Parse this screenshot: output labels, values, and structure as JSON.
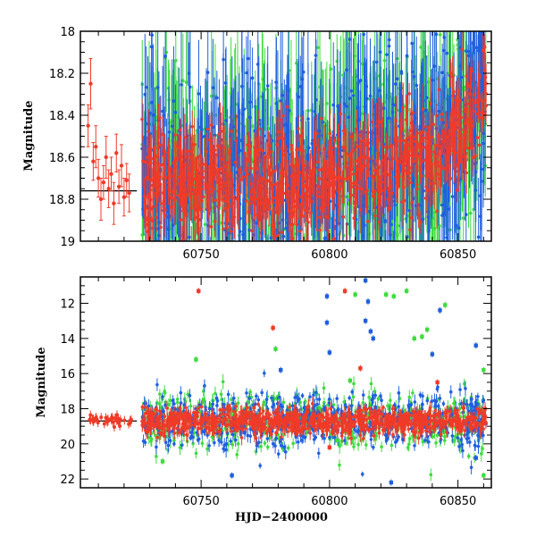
{
  "chart_data": [
    {
      "type": "scatter",
      "title": "",
      "xlabel": "",
      "ylabel": "Magnitude",
      "xlim": [
        60703,
        60863
      ],
      "ylim": [
        19,
        18
      ],
      "y_inverted": true,
      "xticks": [
        60750,
        60800,
        60850
      ],
      "xtick_labels": [
        "60750",
        "60800",
        "60850"
      ],
      "yticks": [
        18,
        18.2,
        18.4,
        18.6,
        18.8,
        19
      ],
      "ytick_labels": [
        "18",
        "18.2",
        "18.4",
        "18.6",
        "18.8",
        "19"
      ],
      "series_colors": {
        "green": "#3ddc3d",
        "blue": "#1f5fe0",
        "red": "#f03a28"
      },
      "reference_line": {
        "y": 18.76,
        "x_end": 60725,
        "color": "#000000"
      },
      "notes_visible": "dense scatter with error bars; blue and green extend above 18 late",
      "series": [
        {
          "color_key": "red",
          "x": [
            60706,
            60707,
            60708,
            60709,
            60710,
            60711,
            60712,
            60713,
            60714,
            60715,
            60716,
            60717,
            60718,
            60719,
            60720,
            60721,
            60722
          ],
          "y": [
            18.45,
            18.25,
            18.62,
            18.55,
            18.7,
            18.8,
            18.72,
            18.6,
            18.75,
            18.68,
            18.82,
            18.58,
            18.74,
            18.64,
            18.79,
            18.71,
            18.77
          ],
          "err": [
            0.1,
            0.12,
            0.09,
            0.1,
            0.09,
            0.1,
            0.08,
            0.1,
            0.09,
            0.08,
            0.1,
            0.09,
            0.08,
            0.1,
            0.09,
            0.08,
            0.09
          ]
        }
      ]
    },
    {
      "type": "scatter",
      "title": "",
      "xlabel": "HJD−2400000",
      "ylabel": "Magnitude",
      "xlim": [
        60703,
        60863
      ],
      "ylim": [
        22.5,
        10.5
      ],
      "y_inverted": true,
      "xticks": [
        60750,
        60800,
        60850
      ],
      "xtick_labels": [
        "60750",
        "60800",
        "60850"
      ],
      "yticks": [
        12,
        14,
        16,
        18,
        20,
        22
      ],
      "ytick_labels": [
        "12",
        "14",
        "16",
        "18",
        "20",
        "22"
      ],
      "series_colors": {
        "green": "#3ddc3d",
        "blue": "#1f5fe0",
        "red": "#f03a28"
      },
      "reference_line": {
        "y": 18.7,
        "x_end": 60725,
        "color": "#000000"
      },
      "outliers": [
        {
          "color_key": "red",
          "x": 60749,
          "y": 11.3
        },
        {
          "color_key": "red",
          "x": 60778,
          "y": 13.4
        },
        {
          "color_key": "red",
          "x": 60748,
          "y": 18.4
        },
        {
          "color_key": "green",
          "x": 60748,
          "y": 15.2
        },
        {
          "color_key": "green",
          "x": 60779,
          "y": 14.6
        },
        {
          "color_key": "blue",
          "x": 60781,
          "y": 15.8
        },
        {
          "color_key": "blue",
          "x": 60799,
          "y": 11.6
        },
        {
          "color_key": "blue",
          "x": 60799,
          "y": 13.1
        },
        {
          "color_key": "blue",
          "x": 60800,
          "y": 14.8
        },
        {
          "color_key": "red",
          "x": 60806,
          "y": 11.3
        },
        {
          "color_key": "green",
          "x": 60810,
          "y": 11.5
        },
        {
          "color_key": "blue",
          "x": 60814,
          "y": 10.7
        },
        {
          "color_key": "blue",
          "x": 60815,
          "y": 11.9
        },
        {
          "color_key": "blue",
          "x": 60814,
          "y": 13.0
        },
        {
          "color_key": "blue",
          "x": 60816,
          "y": 13.6
        },
        {
          "color_key": "blue",
          "x": 60817,
          "y": 14.0
        },
        {
          "color_key": "green",
          "x": 60822,
          "y": 11.5
        },
        {
          "color_key": "green",
          "x": 60825,
          "y": 11.6
        },
        {
          "color_key": "green",
          "x": 60830,
          "y": 11.3
        },
        {
          "color_key": "green",
          "x": 60833,
          "y": 14.0
        },
        {
          "color_key": "green",
          "x": 60836,
          "y": 13.9
        },
        {
          "color_key": "blue",
          "x": 60840,
          "y": 14.9
        },
        {
          "color_key": "green",
          "x": 60838,
          "y": 13.5
        },
        {
          "color_key": "blue",
          "x": 60843,
          "y": 12.4
        },
        {
          "color_key": "green",
          "x": 60845,
          "y": 12.1
        },
        {
          "color_key": "blue",
          "x": 60857,
          "y": 14.4
        },
        {
          "color_key": "green",
          "x": 60860,
          "y": 15.8
        },
        {
          "color_key": "red",
          "x": 60812,
          "y": 15.7
        },
        {
          "color_key": "red",
          "x": 60842,
          "y": 16.5
        },
        {
          "color_key": "green",
          "x": 60808,
          "y": 16.4
        },
        {
          "color_key": "green",
          "x": 60803,
          "y": 19.8
        },
        {
          "color_key": "blue",
          "x": 60824,
          "y": 22.2
        },
        {
          "color_key": "blue",
          "x": 60762,
          "y": 21.8
        },
        {
          "color_key": "green",
          "x": 60735,
          "y": 21.0
        },
        {
          "color_key": "green",
          "x": 60860,
          "y": 21.8
        },
        {
          "color_key": "blue",
          "x": 60857,
          "y": 20.8
        },
        {
          "color_key": "red",
          "x": 60800,
          "y": 20.2
        }
      ]
    }
  ]
}
